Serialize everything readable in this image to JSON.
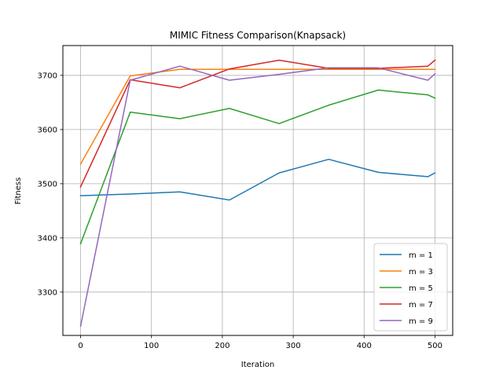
{
  "chart_data": {
    "type": "line",
    "title": "MIMIC Fitness Comparison(Knapsack)",
    "xlabel": "Iteration",
    "ylabel": "Fitness",
    "xlim": [
      -25,
      525
    ],
    "ylim": [
      3220,
      3755
    ],
    "xticks": [
      0,
      100,
      200,
      300,
      400,
      500
    ],
    "yticks": [
      3300,
      3400,
      3500,
      3600,
      3700
    ],
    "grid": true,
    "legend_position": "lower-right",
    "series": [
      {
        "name": "m = 1",
        "color": "#1f77b4",
        "x": [
          0,
          70,
          140,
          210,
          280,
          350,
          420,
          490,
          500
        ],
        "y": [
          3478,
          3481,
          3485,
          3470,
          3520,
          3545,
          3521,
          3513,
          3520
        ]
      },
      {
        "name": "m = 3",
        "color": "#ff7f0e",
        "x": [
          0,
          70,
          140,
          210,
          280,
          350,
          420,
          490,
          500
        ],
        "y": [
          3536,
          3699,
          3711,
          3711,
          3711,
          3711,
          3711,
          3711,
          3711
        ]
      },
      {
        "name": "m = 5",
        "color": "#2ca02c",
        "x": [
          0,
          70,
          140,
          210,
          280,
          350,
          420,
          490,
          500
        ],
        "y": [
          3389,
          3632,
          3620,
          3639,
          3611,
          3645,
          3673,
          3664,
          3658
        ]
      },
      {
        "name": "m = 7",
        "color": "#d62728",
        "x": [
          0,
          70,
          140,
          210,
          280,
          350,
          420,
          490,
          500
        ],
        "y": [
          3494,
          3692,
          3677,
          3712,
          3728,
          3713,
          3713,
          3717,
          3728
        ]
      },
      {
        "name": "m = 9",
        "color": "#9467bd",
        "x": [
          0,
          70,
          140,
          210,
          280,
          350,
          420,
          490,
          500
        ],
        "y": [
          3237,
          3691,
          3717,
          3691,
          3702,
          3714,
          3714,
          3691,
          3703
        ]
      }
    ]
  }
}
